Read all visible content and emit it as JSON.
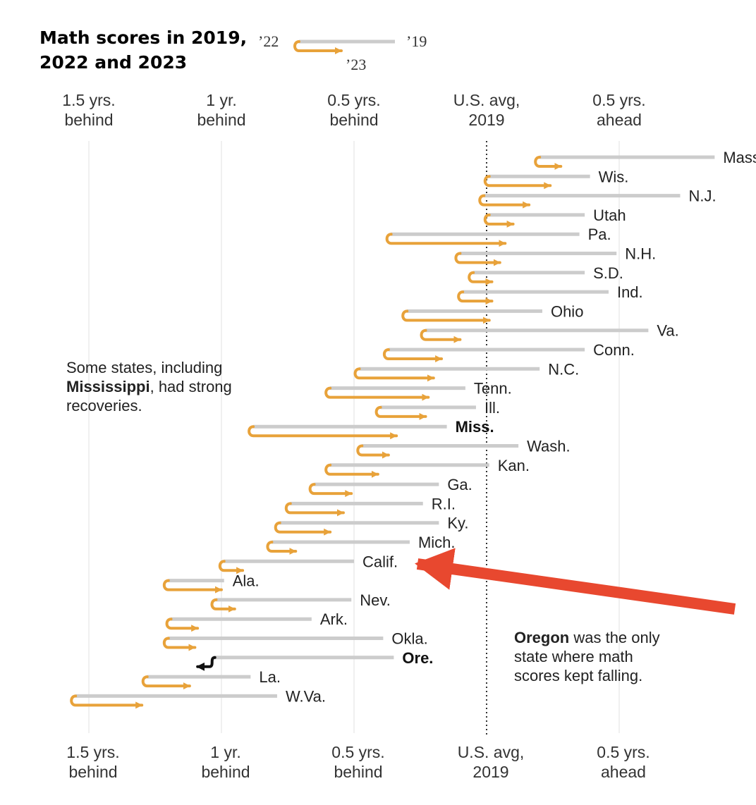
{
  "title": {
    "line1": "Math scores in 2019,",
    "line2": "2022 and 2023"
  },
  "legend": {
    "label_2022": "’22",
    "label_2019": "’19",
    "label_2023": "’23"
  },
  "colors": {
    "arrow": "#e8a23a",
    "bar_2019": "#cccccc",
    "decline_arrow": "#111111",
    "callout_arrow": "#e8482f",
    "reference_line": "#333333"
  },
  "chart_data": {
    "type": "arrow-range",
    "units": "years relative to 2019 U.S. average",
    "xlim": [
      -1.6,
      0.9
    ],
    "ticks": [
      {
        "value": -1.5,
        "line1": "1.5 yrs.",
        "line2": "behind"
      },
      {
        "value": -1.0,
        "line1": "1 yr.",
        "line2": "behind"
      },
      {
        "value": -0.5,
        "line1": "0.5 yrs.",
        "line2": "behind"
      },
      {
        "value": 0.0,
        "line1": "U.S. avg,",
        "line2": "2019"
      },
      {
        "value": 0.5,
        "line1": "0.5 yrs.",
        "line2": "ahead"
      }
    ],
    "reference_line": {
      "value": 0.0,
      "label": "U.S. avg, 2019"
    },
    "series_names": [
      "2019",
      "2022",
      "2023"
    ],
    "states": [
      {
        "name": "Mass.",
        "y2019": 0.86,
        "y2022": 0.2,
        "y2023": 0.28
      },
      {
        "name": "Wis.",
        "y2019": 0.39,
        "y2022": 0.01,
        "y2023": 0.24
      },
      {
        "name": "N.J.",
        "y2019": 0.73,
        "y2022": -0.01,
        "y2023": 0.16
      },
      {
        "name": "Utah",
        "y2019": 0.37,
        "y2022": 0.01,
        "y2023": 0.1
      },
      {
        "name": "Pa.",
        "y2019": 0.35,
        "y2022": -0.36,
        "y2023": 0.07
      },
      {
        "name": "N.H.",
        "y2019": 0.49,
        "y2022": -0.1,
        "y2023": 0.05
      },
      {
        "name": "S.D.",
        "y2019": 0.37,
        "y2022": -0.05,
        "y2023": 0.02
      },
      {
        "name": "Ind.",
        "y2019": 0.46,
        "y2022": -0.09,
        "y2023": 0.02
      },
      {
        "name": "Ohio",
        "y2019": 0.21,
        "y2022": -0.3,
        "y2023": 0.01
      },
      {
        "name": "Va.",
        "y2019": 0.61,
        "y2022": -0.23,
        "y2023": -0.1
      },
      {
        "name": "Conn.",
        "y2019": 0.37,
        "y2022": -0.37,
        "y2023": -0.17
      },
      {
        "name": "N.C.",
        "y2019": 0.2,
        "y2022": -0.48,
        "y2023": -0.2
      },
      {
        "name": "Tenn.",
        "y2019": -0.08,
        "y2022": -0.59,
        "y2023": -0.22
      },
      {
        "name": "Ill.",
        "y2019": -0.04,
        "y2022": -0.4,
        "y2023": -0.23
      },
      {
        "name": "Miss.",
        "y2019": -0.15,
        "y2022": -0.88,
        "y2023": -0.34
      },
      {
        "name": "Wash.",
        "y2019": 0.12,
        "y2022": -0.47,
        "y2023": -0.37
      },
      {
        "name": "Kan.",
        "y2019": 0.01,
        "y2022": -0.59,
        "y2023": -0.41
      },
      {
        "name": "Ga.",
        "y2019": -0.18,
        "y2022": -0.65,
        "y2023": -0.51
      },
      {
        "name": "R.I.",
        "y2019": -0.24,
        "y2022": -0.74,
        "y2023": -0.54
      },
      {
        "name": "Ky.",
        "y2019": -0.18,
        "y2022": -0.78,
        "y2023": -0.59
      },
      {
        "name": "Mich.",
        "y2019": -0.29,
        "y2022": -0.81,
        "y2023": -0.72
      },
      {
        "name": "Calif.",
        "y2019": -0.5,
        "y2022": -0.99,
        "y2023": -0.92
      },
      {
        "name": "Ala.",
        "y2019": -0.99,
        "y2022": -1.2,
        "y2023": -1.0
      },
      {
        "name": "Nev.",
        "y2019": -0.51,
        "y2022": -1.02,
        "y2023": -0.95
      },
      {
        "name": "Ark.",
        "y2019": -0.66,
        "y2022": -1.19,
        "y2023": -1.09
      },
      {
        "name": "Okla.",
        "y2019": -0.39,
        "y2022": -1.2,
        "y2023": -1.1
      },
      {
        "name": "Ore.",
        "y2019": -0.35,
        "y2022": -1.03,
        "y2023": -1.09,
        "highlight": true
      },
      {
        "name": "La.",
        "y2019": -0.89,
        "y2022": -1.28,
        "y2023": -1.12
      },
      {
        "name": "W.Va.",
        "y2019": -0.79,
        "y2022": -1.55,
        "y2023": -1.3
      }
    ]
  },
  "annotations": {
    "mississippi": {
      "line1": "Some states, including",
      "bold": "Mississippi",
      "line2_rest": ", had strong",
      "line3": "recoveries."
    },
    "oregon": {
      "bold": "Oregon",
      "line1_rest": " was the only",
      "line2": "state where math",
      "line3": "scores kept falling."
    },
    "emphasis_labels": [
      "Miss.",
      "Ore."
    ],
    "callout_target": "Calif."
  }
}
